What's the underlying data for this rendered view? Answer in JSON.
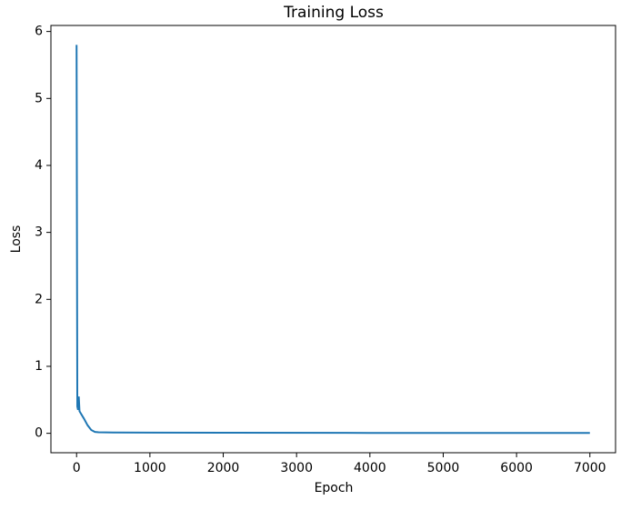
{
  "chart_data": {
    "type": "line",
    "title": "Training Loss",
    "x_label": "Epoch",
    "y_label": "Loss",
    "x": [
      0,
      10,
      20,
      30,
      40,
      100,
      150,
      200,
      250,
      300,
      500,
      1000,
      2000,
      4000,
      7000
    ],
    "series": [
      {
        "name": "Loss",
        "color": "#1f77b4",
        "values": [
          5.8,
          0.4,
          0.35,
          0.55,
          0.33,
          0.22,
          0.12,
          0.05,
          0.02,
          0.015,
          0.012,
          0.01,
          0.008,
          0.006,
          0.005
        ]
      }
    ],
    "xlim": [
      -350,
      7350
    ],
    "ylim": [
      -0.29,
      6.09
    ],
    "xticks": [
      0,
      1000,
      2000,
      3000,
      4000,
      5000,
      6000,
      7000
    ],
    "yticks": [
      0,
      1,
      2,
      3,
      4,
      5,
      6
    ]
  }
}
